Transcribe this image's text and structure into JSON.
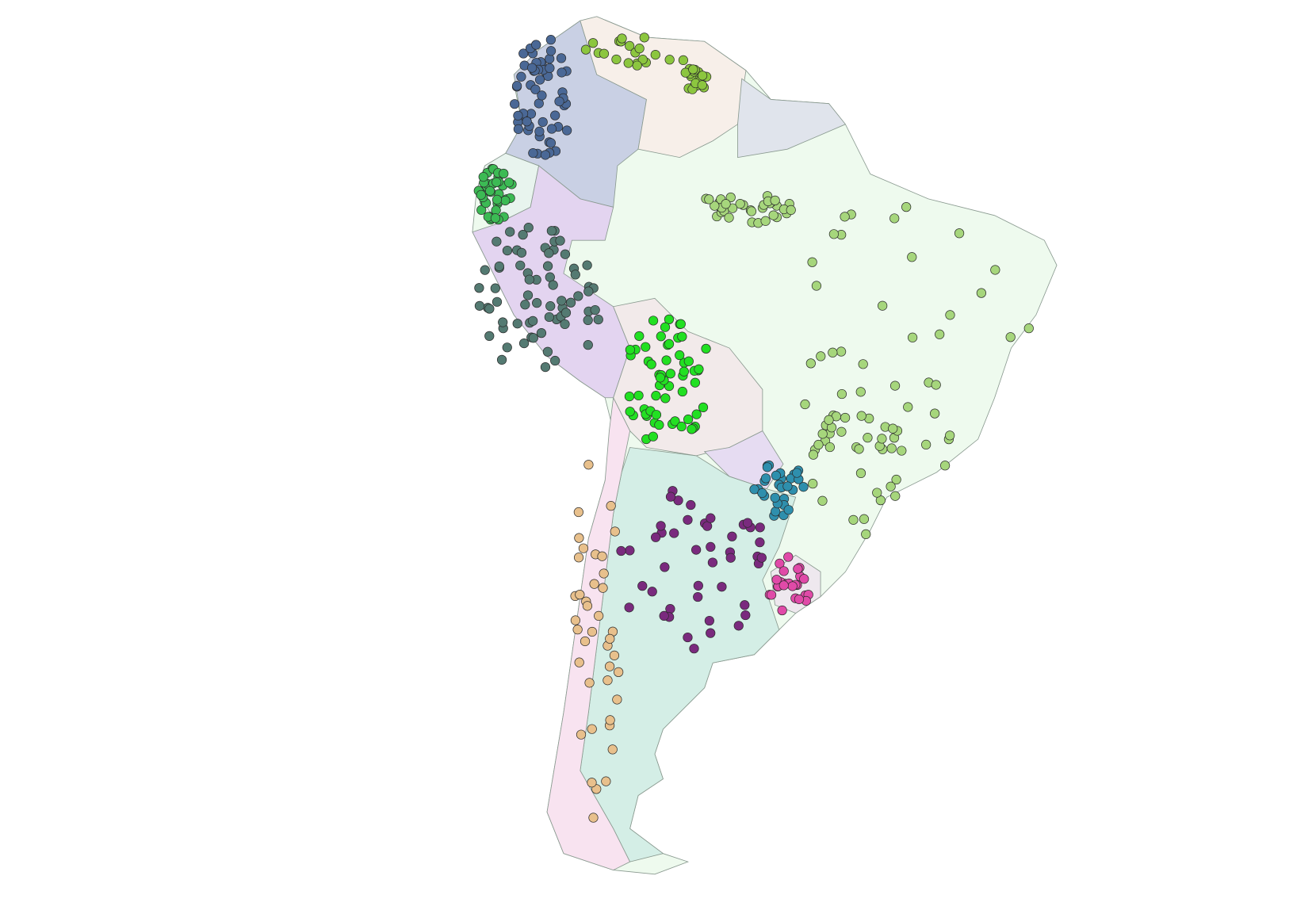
{
  "map": {
    "background": "#ffffff",
    "continent_fill": "#eefaee",
    "border_color": "#8a9a90",
    "regions": [
      {
        "id": "colombia",
        "fill": "#c9d0e4",
        "point_color": "#4a6896",
        "point_count": 60
      },
      {
        "id": "venezuela",
        "fill": "#f7efe9",
        "point_color": "#8cc63f",
        "point_count": 40
      },
      {
        "id": "guianas",
        "fill": "#e0e4ec",
        "point_color": "",
        "point_count": 0
      },
      {
        "id": "ecuador",
        "fill": "#e8f4ee",
        "point_color": "#3cba54",
        "point_count": 40
      },
      {
        "id": "peru",
        "fill": "#e3d4f0",
        "point_color": "#547a72",
        "point_count": 70
      },
      {
        "id": "bolivia",
        "fill": "#f2eaea",
        "point_color": "#22e022",
        "point_count": 60
      },
      {
        "id": "paraguay",
        "fill": "#e6dcf2",
        "point_color": "#2e8fad",
        "point_count": 30
      },
      {
        "id": "argentina",
        "fill": "#d4eee6",
        "point_color": "#7a2a7e",
        "point_count": 45
      },
      {
        "id": "chile",
        "fill": "#f8e3f0",
        "point_color": "#e8c08c",
        "point_count": 40
      },
      {
        "id": "uruguay",
        "fill": "#eee8ee",
        "point_color": "#e04aa8",
        "point_count": 25
      },
      {
        "id": "brazil",
        "fill": "#eefaee",
        "point_color": "#a6d67c",
        "point_count": 110
      }
    ]
  }
}
